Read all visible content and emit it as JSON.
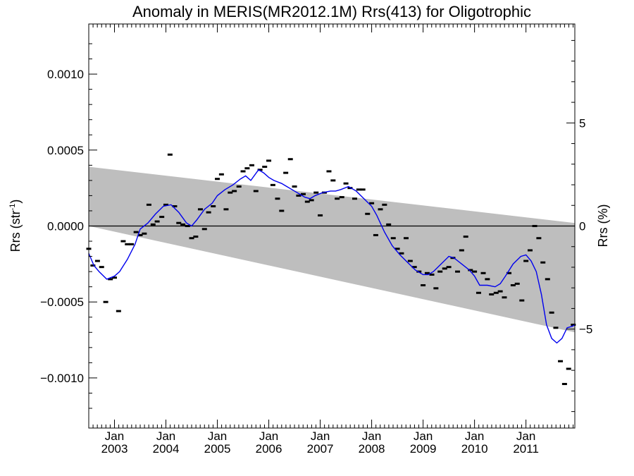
{
  "chart_data": {
    "type": "scatter",
    "title": "Anomaly in MERIS(MR2012.1M) Rrs(413) for Oligotrophic",
    "ylabel_left": "Rrs (str",
    "ylabel_left_sup": "-1",
    "ylabel_left_close": ")",
    "ylabel_right": "Rrs (%)",
    "x_unit": "decimal year",
    "xlim": [
      2002.5,
      2011.95
    ],
    "ylim_left": [
      -0.00133,
      0.00133
    ],
    "ylim_right": [
      -9.8,
      9.8
    ],
    "x_tick_month": "Jan",
    "x_ticks": [
      {
        "x": 2003,
        "year": "2003"
      },
      {
        "x": 2004,
        "year": "2004"
      },
      {
        "x": 2005,
        "year": "2005"
      },
      {
        "x": 2006,
        "year": "2006"
      },
      {
        "x": 2007,
        "year": "2007"
      },
      {
        "x": 2008,
        "year": "2008"
      },
      {
        "x": 2009,
        "year": "2009"
      },
      {
        "x": 2010,
        "year": "2010"
      },
      {
        "x": 2011,
        "year": "2011"
      }
    ],
    "y_ticks_left": [
      {
        "v": 0.001,
        "label": "0.0010"
      },
      {
        "v": 0.0005,
        "label": "0.0005"
      },
      {
        "v": 0.0,
        "label": "0.0000"
      },
      {
        "v": -0.0005,
        "label": "−0.0005"
      },
      {
        "v": -0.001,
        "label": "−0.0010"
      }
    ],
    "y_ticks_right": [
      {
        "v": 5,
        "label": "5"
      },
      {
        "v": 0,
        "label": "0"
      },
      {
        "v": -5,
        "label": "−5"
      }
    ],
    "band": {
      "x": [
        2002.5,
        2011.95
      ],
      "upper": [
        0.00039,
        2e-05
      ],
      "lower": [
        0.0,
        -0.0007
      ],
      "color": "#bebebe"
    },
    "zero_line": 0.0,
    "monthly_anomalies": {
      "color": "#000000",
      "x": [
        2002.5,
        2002.58,
        2002.67,
        2002.75,
        2002.83,
        2002.92,
        2003.0,
        2003.08,
        2003.17,
        2003.25,
        2003.33,
        2003.42,
        2003.5,
        2003.58,
        2003.67,
        2003.75,
        2003.83,
        2003.92,
        2004.0,
        2004.08,
        2004.17,
        2004.25,
        2004.33,
        2004.42,
        2004.5,
        2004.58,
        2004.67,
        2004.75,
        2004.83,
        2004.92,
        2005.0,
        2005.08,
        2005.17,
        2005.25,
        2005.33,
        2005.42,
        2005.5,
        2005.58,
        2005.67,
        2005.75,
        2005.83,
        2005.92,
        2006.0,
        2006.08,
        2006.17,
        2006.25,
        2006.33,
        2006.42,
        2006.5,
        2006.58,
        2006.67,
        2006.75,
        2006.83,
        2006.92,
        2007.0,
        2007.08,
        2007.17,
        2007.25,
        2007.33,
        2007.42,
        2007.5,
        2007.58,
        2007.67,
        2007.75,
        2007.83,
        2007.92,
        2008.0,
        2008.08,
        2008.17,
        2008.25,
        2008.33,
        2008.42,
        2008.5,
        2008.58,
        2008.67,
        2008.75,
        2008.83,
        2008.92,
        2009.0,
        2009.08,
        2009.17,
        2009.25,
        2009.33,
        2009.42,
        2009.5,
        2009.58,
        2009.67,
        2009.75,
        2009.83,
        2009.92,
        2010.0,
        2010.08,
        2010.17,
        2010.25,
        2010.33,
        2010.42,
        2010.5,
        2010.58,
        2010.67,
        2010.75,
        2010.83,
        2010.92,
        2011.0,
        2011.08,
        2011.17,
        2011.25,
        2011.33,
        2011.42,
        2011.5,
        2011.58,
        2011.67,
        2011.75,
        2011.83,
        2011.92
      ],
      "y": [
        -0.00015,
        -0.00026,
        -0.00023,
        -0.00027,
        -0.0005,
        -0.00035,
        -0.00034,
        -0.00056,
        -0.0001,
        -0.00012,
        -0.00012,
        -4e-05,
        -6e-05,
        -5e-05,
        0.00014,
        1e-05,
        3e-05,
        6e-05,
        0.00014,
        0.00047,
        0.00013,
        2e-05,
        1e-05,
        0.0,
        -8e-05,
        -7e-05,
        0.00011,
        -2e-05,
        9e-05,
        0.00013,
        0.00031,
        0.00034,
        0.00011,
        0.00022,
        0.00023,
        0.00026,
        0.00036,
        0.00038,
        0.0004,
        0.00023,
        0.00037,
        0.00039,
        0.00043,
        0.00027,
        0.00018,
        0.0001,
        0.00035,
        0.00044,
        0.00026,
        0.0002,
        0.00021,
        0.00016,
        0.00017,
        0.00022,
        7e-05,
        0.00022,
        0.00036,
        0.0003,
        0.00018,
        0.00019,
        0.00028,
        0.00025,
        0.00018,
        0.00024,
        0.00024,
        8e-05,
        0.00015,
        -6e-05,
        0.00011,
        0.00014,
        1e-05,
        -8e-05,
        -0.00015,
        -0.00018,
        -8e-05,
        -0.00023,
        -0.00027,
        -0.0003,
        -0.00039,
        -0.00031,
        -0.00032,
        -0.00041,
        -0.0003,
        -0.00028,
        -0.00027,
        -0.00021,
        -0.0003,
        -0.00016,
        -7e-05,
        -0.00029,
        -0.0003,
        -0.00044,
        -0.00031,
        -0.00035,
        -0.00045,
        -0.00044,
        -0.00043,
        -0.00047,
        -0.00031,
        -0.00039,
        -0.00038,
        -0.00049,
        -0.00023,
        -0.00016,
        0.0,
        -8e-05,
        -0.00024,
        -0.00035,
        -0.00057,
        -0.00067,
        -0.00089,
        -0.00104,
        -0.00094,
        -0.00065
      ]
    },
    "smoothed_series": {
      "color": "#0000ee",
      "x": [
        2002.5,
        2002.6,
        2002.7,
        2002.85,
        2003.0,
        2003.1,
        2003.25,
        2003.4,
        2003.5,
        2003.65,
        2003.8,
        2003.95,
        2004.1,
        2004.25,
        2004.4,
        2004.5,
        2004.6,
        2004.75,
        2004.9,
        2005.0,
        2005.15,
        2005.3,
        2005.45,
        2005.55,
        2005.65,
        2005.8,
        2005.9,
        2006.0,
        2006.1,
        2006.25,
        2006.35,
        2006.5,
        2006.6,
        2006.7,
        2006.8,
        2006.9,
        2007.05,
        2007.2,
        2007.3,
        2007.4,
        2007.55,
        2007.7,
        2007.85,
        2008.0,
        2008.1,
        2008.25,
        2008.4,
        2008.55,
        2008.7,
        2008.85,
        2009.0,
        2009.1,
        2009.2,
        2009.35,
        2009.5,
        2009.6,
        2009.75,
        2009.9,
        2010.0,
        2010.1,
        2010.25,
        2010.4,
        2010.5,
        2010.6,
        2010.75,
        2010.9,
        2011.0,
        2011.1,
        2011.2,
        2011.3,
        2011.4,
        2011.5,
        2011.6,
        2011.7,
        2011.8,
        2011.9,
        2011.95
      ],
      "y": [
        -0.00018,
        -0.00026,
        -0.0003,
        -0.00035,
        -0.00033,
        -0.0003,
        -0.00022,
        -0.00012,
        -2e-05,
        2e-05,
        8e-05,
        0.00013,
        0.00014,
        9e-05,
        2e-05,
        0.0,
        4e-05,
        0.00011,
        0.00015,
        0.0002,
        0.00024,
        0.00027,
        0.00031,
        0.00033,
        0.0003,
        0.00037,
        0.00035,
        0.00032,
        0.0003,
        0.00028,
        0.00026,
        0.00023,
        0.00021,
        0.00019,
        0.00018,
        0.0002,
        0.00022,
        0.00023,
        0.00023,
        0.00024,
        0.00026,
        0.00023,
        0.00018,
        0.00013,
        7e-05,
        -4e-05,
        -0.00013,
        -0.00019,
        -0.00024,
        -0.00029,
        -0.00032,
        -0.00032,
        -0.0003,
        -0.00025,
        -0.0002,
        -0.00021,
        -0.00025,
        -0.00029,
        -0.00033,
        -0.00039,
        -0.00039,
        -0.0004,
        -0.00038,
        -0.00033,
        -0.00025,
        -0.0002,
        -0.00019,
        -0.00023,
        -0.0003,
        -0.00045,
        -0.00065,
        -0.00074,
        -0.00077,
        -0.00074,
        -0.00067,
        -0.00066,
        -0.00065
      ]
    }
  }
}
